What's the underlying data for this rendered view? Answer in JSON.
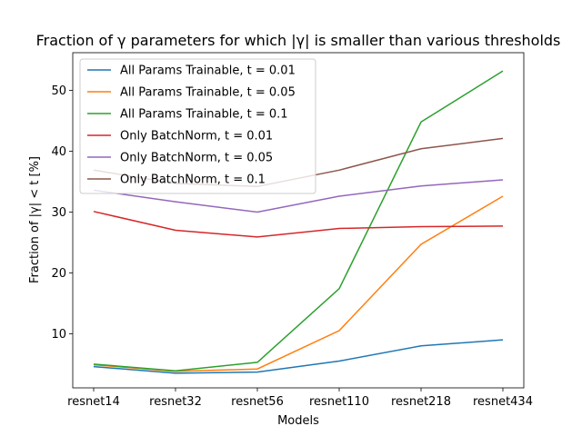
{
  "chart_data": {
    "type": "line",
    "title": "Fraction of γ parameters for which |γ| is smaller than various thresholds",
    "xlabel": "Models",
    "ylabel": "Fraction of |γ| < t [%]",
    "categories": [
      "resnet14",
      "resnet32",
      "resnet56",
      "resnet110",
      "resnet218",
      "resnet434"
    ],
    "ylim": [
      1.1,
      56.2
    ],
    "yticks": [
      10,
      20,
      30,
      40,
      50
    ],
    "grid": false,
    "legend_position": "top-left",
    "series": [
      {
        "name": "All Params Trainable, t = 0.01",
        "color": "#1f77b4",
        "values": [
          4.6,
          3.5,
          3.7,
          5.5,
          8.0,
          9.0
        ]
      },
      {
        "name": "All Params Trainable, t = 0.05",
        "color": "#ff7f0e",
        "values": [
          4.9,
          3.8,
          4.2,
          10.5,
          24.7,
          32.6
        ]
      },
      {
        "name": "All Params Trainable, t = 0.1",
        "color": "#2ca02c",
        "values": [
          5.0,
          3.9,
          5.3,
          17.4,
          44.8,
          53.2
        ]
      },
      {
        "name": "Only BatchNorm, t = 0.01",
        "color": "#d62728",
        "values": [
          30.1,
          27.0,
          25.9,
          27.3,
          27.6,
          27.7
        ]
      },
      {
        "name": "Only BatchNorm, t = 0.05",
        "color": "#9467bd",
        "values": [
          33.6,
          31.7,
          30.0,
          32.6,
          34.3,
          35.3
        ]
      },
      {
        "name": "Only BatchNorm, t = 0.1",
        "color": "#8c564b",
        "values": [
          36.9,
          34.7,
          34.2,
          36.9,
          40.4,
          42.1
        ]
      }
    ]
  }
}
